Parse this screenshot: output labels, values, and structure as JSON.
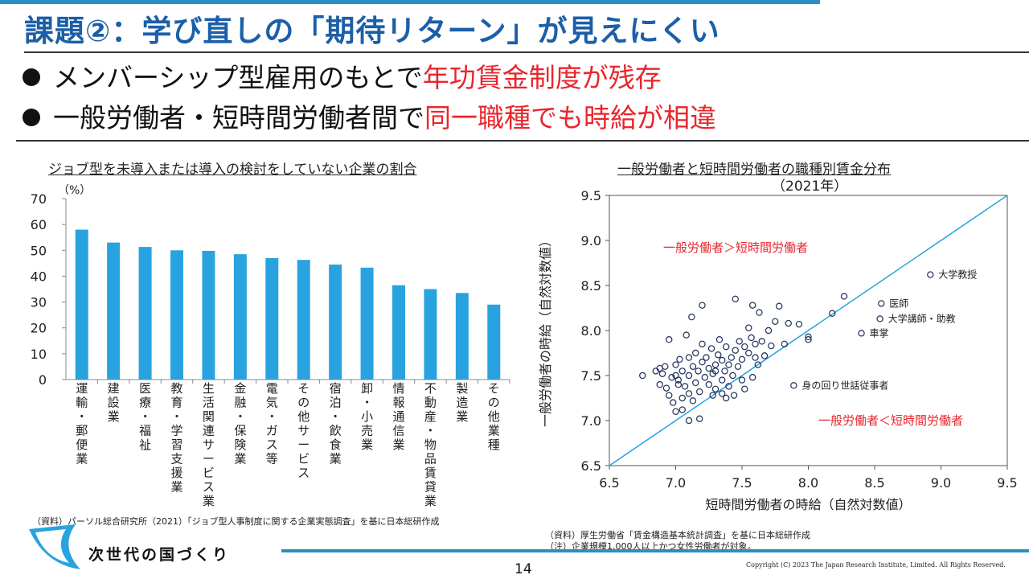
{
  "header": {
    "title": "課題②：学び直しの「期待リターン」が見えにくい",
    "bullets": [
      {
        "text": "メンバーシップ型雇用のもとで",
        "highlight": "年功賃金制度が残存"
      },
      {
        "text": "一般労働者・短時間労働者間で",
        "highlight": "同一職種でも時給が相違"
      }
    ]
  },
  "left_chart": {
    "title": "ジョブ型を未導入または導入の検討をしていない企業の割合",
    "unit": "（%）",
    "source": "（資料）パーソル総合研究所（2021）「ジョブ型人事制度に関する企業実態調査」を基に日本総研作成"
  },
  "right_chart": {
    "title": "一般労働者と短時間労働者の職種別賃金分布",
    "subtitle": "（2021年）",
    "region_upper": "一般労働者＞短時間労働者",
    "region_lower": "一般労働者＜短時間労働者",
    "source": "（資料）厚生労働省「賃金構造基本統計調査」を基に日本総研作成",
    "note": "（注）企業規模1,000人以上かつ女性労働者が対象。"
  },
  "chart_data": [
    {
      "type": "bar",
      "title": "ジョブ型を未導入または導入の検討をしていない企業の割合",
      "ylabel": "（%）",
      "ylim": [
        0,
        70
      ],
      "yticks": [
        0,
        10,
        20,
        30,
        40,
        50,
        60,
        70
      ],
      "categories": [
        "運輸・郵便業",
        "建設業",
        "医療・福祉",
        "教育・学習支援業",
        "生活関連サービス業",
        "金融・保険業",
        "電気・ガス等",
        "その他サービス",
        "宿泊・飲食業",
        "卸・小売業",
        "情報通信業",
        "不動産・物品賃貸業",
        "製造業",
        "その他業種"
      ],
      "values": [
        58,
        53,
        51.3,
        50,
        49.8,
        48.5,
        47,
        46.3,
        44.5,
        43.3,
        36.5,
        35,
        33.5,
        29
      ],
      "color": "#29a3e0"
    },
    {
      "type": "scatter",
      "title": "一般労働者と短時間労働者の職種別賃金分布",
      "subtitle": "（2021年）",
      "xlabel": "短時間労働者の時給（自然対数値）",
      "ylabel": "一般労働者の時給（自然対数値）",
      "xlim": [
        6.5,
        9.5
      ],
      "ylim": [
        6.5,
        9.5
      ],
      "xticks": [
        "6.5",
        "7.0",
        "7.5",
        "8.0",
        "8.5",
        "9.0",
        "9.5"
      ],
      "yticks": [
        "6.5",
        "7.0",
        "7.5",
        "8.0",
        "8.5",
        "9.0",
        "9.5"
      ],
      "reference_line": {
        "from": [
          6.5,
          6.5
        ],
        "to": [
          9.5,
          9.5
        ],
        "color": "#29a3e0"
      },
      "labeled_points": [
        {
          "label": "大学教授",
          "x": 8.92,
          "y": 8.62
        },
        {
          "label": "医師",
          "x": 8.55,
          "y": 8.3
        },
        {
          "label": "大学講師・助教",
          "x": 8.54,
          "y": 8.13
        },
        {
          "label": "車掌",
          "x": 8.4,
          "y": 7.97
        },
        {
          "label": "身の回り世話従事者",
          "x": 7.89,
          "y": 7.39
        }
      ],
      "points": [
        [
          6.75,
          7.5
        ],
        [
          6.85,
          7.55
        ],
        [
          6.88,
          7.58
        ],
        [
          6.88,
          7.4
        ],
        [
          6.9,
          7.52
        ],
        [
          6.92,
          7.6
        ],
        [
          6.93,
          7.36
        ],
        [
          6.95,
          7.28
        ],
        [
          6.95,
          7.9
        ],
        [
          6.97,
          7.48
        ],
        [
          6.98,
          7.2
        ],
        [
          7.0,
          7.62
        ],
        [
          7.0,
          7.1
        ],
        [
          7.02,
          7.45
        ],
        [
          7.03,
          7.68
        ],
        [
          7.05,
          7.55
        ],
        [
          7.05,
          7.25
        ],
        [
          7.07,
          7.38
        ],
        [
          7.08,
          7.95
        ],
        [
          7.1,
          7.7
        ],
        [
          7.1,
          7.5
        ],
        [
          7.1,
          7.3
        ],
        [
          7.1,
          7.0
        ],
        [
          7.12,
          8.15
        ],
        [
          7.13,
          7.6
        ],
        [
          7.15,
          7.42
        ],
        [
          7.15,
          7.75
        ],
        [
          7.17,
          7.55
        ],
        [
          7.18,
          7.32
        ],
        [
          7.2,
          7.65
        ],
        [
          7.2,
          7.85
        ],
        [
          7.2,
          8.28
        ],
        [
          7.22,
          7.48
        ],
        [
          7.23,
          7.7
        ],
        [
          7.25,
          7.58
        ],
        [
          7.25,
          7.4
        ],
        [
          7.27,
          7.8
        ],
        [
          7.28,
          7.52
        ],
        [
          7.3,
          7.62
        ],
        [
          7.3,
          7.35
        ],
        [
          7.32,
          7.73
        ],
        [
          7.33,
          7.9
        ],
        [
          7.35,
          7.45
        ],
        [
          7.35,
          7.67
        ],
        [
          7.37,
          7.55
        ],
        [
          7.38,
          7.82
        ],
        [
          7.4,
          7.62
        ],
        [
          7.4,
          7.38
        ],
        [
          7.42,
          7.7
        ],
        [
          7.43,
          7.5
        ],
        [
          7.45,
          7.78
        ],
        [
          7.45,
          8.35
        ],
        [
          7.47,
          7.6
        ],
        [
          7.48,
          7.88
        ],
        [
          7.5,
          7.68
        ],
        [
          7.5,
          7.45
        ],
        [
          7.52,
          7.82
        ],
        [
          7.55,
          7.75
        ],
        [
          7.55,
          8.03
        ],
        [
          7.57,
          7.92
        ],
        [
          7.58,
          8.28
        ],
        [
          7.6,
          7.7
        ],
        [
          7.6,
          7.85
        ],
        [
          7.63,
          8.2
        ],
        [
          7.65,
          7.88
        ],
        [
          7.67,
          7.72
        ],
        [
          7.7,
          8.0
        ],
        [
          7.72,
          7.83
        ],
        [
          7.75,
          8.1
        ],
        [
          7.78,
          8.27
        ],
        [
          7.82,
          7.85
        ],
        [
          7.85,
          8.08
        ],
        [
          7.93,
          8.07
        ],
        [
          8.0,
          7.93
        ],
        [
          8.0,
          7.9
        ],
        [
          8.18,
          8.19
        ],
        [
          8.27,
          8.38
        ],
        [
          7.05,
          7.12
        ],
        [
          7.13,
          7.22
        ],
        [
          7.0,
          7.5
        ],
        [
          7.28,
          7.28
        ],
        [
          7.35,
          7.3
        ],
        [
          7.52,
          7.35
        ],
        [
          7.44,
          7.28
        ],
        [
          7.58,
          7.48
        ],
        [
          7.62,
          7.62
        ],
        [
          7.18,
          7.02
        ],
        [
          7.02,
          7.4
        ],
        [
          7.38,
          7.25
        ],
        [
          7.3,
          7.55
        ]
      ]
    }
  ],
  "footer": {
    "logo_text": "次世代の国づくり",
    "page_number": "14",
    "copyright": "Copyright (C) 2023 The Japan Research Institute, Limited. All Rights Reserved."
  }
}
